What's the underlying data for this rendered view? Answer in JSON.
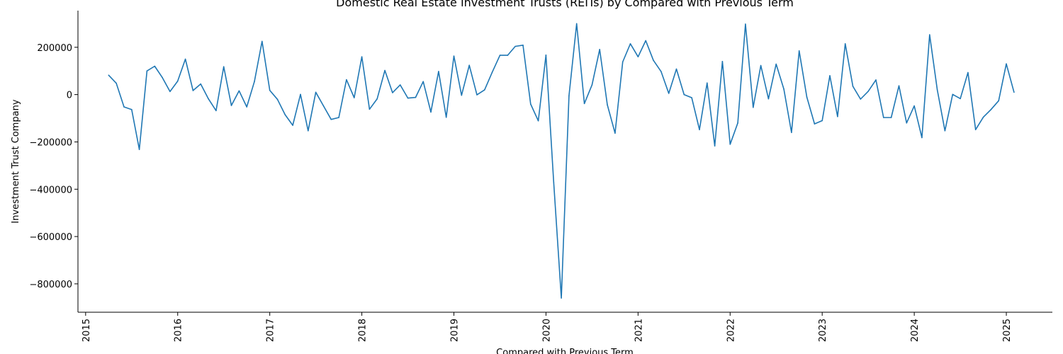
{
  "chart_data": {
    "type": "line",
    "title": "Domestic Real Estate Investment Trusts (REITs) by Compared with Previous Term",
    "xlabel": "Compared with Previous Term",
    "ylabel": "Investment Trust Company",
    "x_ticks": [
      "2015",
      "2016",
      "2017",
      "2018",
      "2019",
      "2020",
      "2021",
      "2022",
      "2023",
      "2024",
      "2025"
    ],
    "y_ticks": [
      -800000,
      -600000,
      -400000,
      -200000,
      0,
      200000
    ],
    "y_tick_labels": [
      "−800000",
      "−600000",
      "−400000",
      "−200000",
      "0",
      "200000"
    ],
    "xlim": [
      "2014-12",
      "2025-07"
    ],
    "ylim": [
      -920000,
      355000
    ],
    "grid": false,
    "line_color": "#1f77b4",
    "series": [
      {
        "x": [
          "2015-04",
          "2015-05",
          "2015-06",
          "2015-07",
          "2015-08",
          "2015-09",
          "2015-10",
          "2015-11",
          "2015-12",
          "2016-01",
          "2016-02",
          "2016-03",
          "2016-04",
          "2016-05",
          "2016-06",
          "2016-07",
          "2016-08",
          "2016-09",
          "2016-10",
          "2016-11",
          "2016-12",
          "2017-01",
          "2017-02",
          "2017-03",
          "2017-04",
          "2017-05",
          "2017-06",
          "2017-07",
          "2017-08",
          "2017-09",
          "2017-10",
          "2017-11",
          "2017-12",
          "2018-01",
          "2018-02",
          "2018-03",
          "2018-04",
          "2018-05",
          "2018-06",
          "2018-07",
          "2018-08",
          "2018-09",
          "2018-10",
          "2018-11",
          "2018-12",
          "2019-01",
          "2019-02",
          "2019-03",
          "2019-04",
          "2019-05",
          "2019-06",
          "2019-07",
          "2019-08",
          "2019-09",
          "2019-10",
          "2019-11",
          "2019-12",
          "2020-01",
          "2020-02",
          "2020-03",
          "2020-04",
          "2020-05",
          "2020-06",
          "2020-07",
          "2020-08",
          "2020-09",
          "2020-10",
          "2020-11",
          "2020-12",
          "2021-01",
          "2021-02",
          "2021-03",
          "2021-04",
          "2021-05",
          "2021-06",
          "2021-07",
          "2021-08",
          "2021-09",
          "2021-10",
          "2021-11",
          "2021-12",
          "2022-01",
          "2022-02",
          "2022-03",
          "2022-04",
          "2022-05",
          "2022-06",
          "2022-07",
          "2022-08",
          "2022-09",
          "2022-10",
          "2022-11",
          "2022-12",
          "2023-01",
          "2023-02",
          "2023-03",
          "2023-04",
          "2023-05",
          "2023-06",
          "2023-07",
          "2023-08",
          "2023-09",
          "2023-10",
          "2023-11",
          "2023-12",
          "2024-01",
          "2024-02",
          "2024-03",
          "2024-04",
          "2024-05",
          "2024-06",
          "2024-07",
          "2024-08",
          "2024-09",
          "2024-10",
          "2024-11",
          "2024-12",
          "2025-01",
          "2025-02"
        ],
        "values": [
          82000,
          48000,
          -52000,
          -63000,
          -232000,
          100000,
          120000,
          72000,
          13000,
          57000,
          150000,
          17000,
          45000,
          -18000,
          -68000,
          118000,
          -46000,
          16000,
          -52000,
          55000,
          225000,
          18000,
          -20000,
          -85000,
          -130000,
          1000,
          -153000,
          10000,
          -48000,
          -105000,
          -97000,
          63000,
          -13000,
          160000,
          -62000,
          -18000,
          102000,
          8000,
          41000,
          -15000,
          -12000,
          55000,
          -74000,
          98000,
          -96000,
          163000,
          -3000,
          124000,
          -1000,
          20000,
          95000,
          166000,
          166000,
          204000,
          209000,
          -40000,
          -111000,
          167000,
          -370000,
          -860000,
          -5000,
          300000,
          -38000,
          41000,
          191000,
          -43000,
          -163000,
          138000,
          215000,
          160000,
          228000,
          145000,
          98000,
          5000,
          108000,
          0,
          -13000,
          -148000,
          49000,
          -217000,
          140000,
          -210000,
          -120000,
          298000,
          -54000,
          123000,
          -18000,
          129000,
          23000,
          -160000,
          185000,
          -10000,
          -124000,
          -110000,
          80000,
          -93000,
          215000,
          35000,
          -19000,
          14000,
          62000,
          -97000,
          -97000,
          37000,
          -120000,
          -48000,
          -182000,
          253000,
          20000,
          -153000,
          1000,
          -17000,
          93000,
          -148000,
          -95000,
          -63000,
          -26000,
          130000,
          10000
        ]
      }
    ]
  }
}
